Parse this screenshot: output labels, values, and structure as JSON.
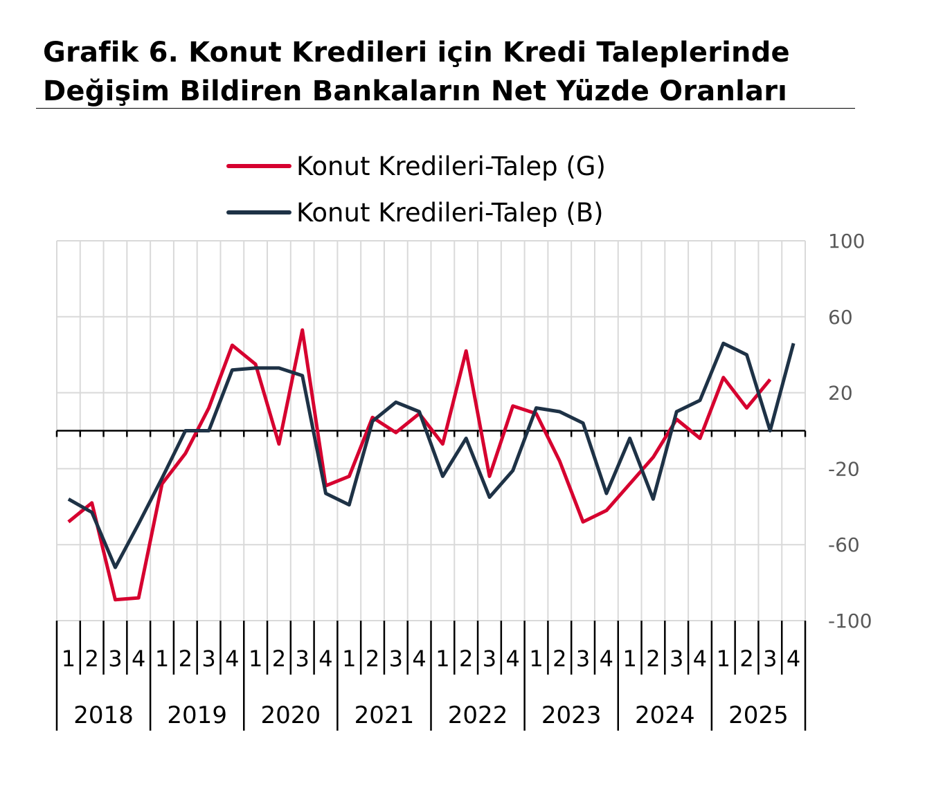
{
  "chart_data": {
    "type": "line",
    "title_lines": [
      "Grafik 6. Konut Kredileri için Kredi Taleplerinde",
      "Değişim Bildiren Bankaların Net Yüzde Oranları"
    ],
    "years": [
      "2018",
      "2019",
      "2020",
      "2021",
      "2022",
      "2023",
      "2024",
      "2025"
    ],
    "quarters": [
      "1",
      "2",
      "3",
      "4"
    ],
    "ylim": [
      -100,
      100
    ],
    "yticks": [
      100,
      60,
      20,
      -20,
      -60,
      -100
    ],
    "ytick_labels": [
      "100",
      "60",
      "20",
      "-20",
      "-60",
      "-100"
    ],
    "y_axis_side": "right",
    "grid": true,
    "legend_position": "top-center",
    "series": [
      {
        "name": "Konut Kredileri-Talep (G)",
        "color": "#D6002F",
        "values": [
          -48,
          -38,
          -89,
          -88,
          -28,
          -12,
          12,
          45,
          35,
          -7,
          53,
          -29,
          -24,
          7,
          -1,
          9,
          -7,
          42,
          -24,
          13,
          9,
          -16,
          -48,
          -42,
          -28,
          -14,
          6,
          -4,
          28,
          12,
          27,
          null
        ]
      },
      {
        "name": "Konut Kredileri-Talep (B)",
        "color": "#1E3246",
        "values": [
          -36,
          -43,
          -72,
          -49,
          -25,
          0,
          0,
          32,
          33,
          33,
          29,
          -33,
          -39,
          5,
          15,
          10,
          -24,
          -4,
          -35,
          -21,
          12,
          10,
          4,
          -33,
          -4,
          -36,
          10,
          16,
          46,
          40,
          0,
          46
        ]
      }
    ]
  }
}
